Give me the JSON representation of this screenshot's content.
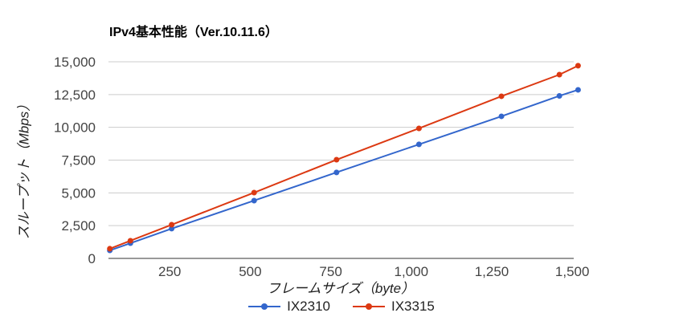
{
  "chart_data": {
    "type": "line",
    "title": "IPv4基本性能（Ver.10.11.6）",
    "xlabel": "フレームサイズ（byte）",
    "ylabel": "スループット（Mbps）",
    "x": [
      64,
      128,
      256,
      512,
      768,
      1024,
      1280,
      1460,
      1518
    ],
    "series": [
      {
        "name": "IX2310",
        "color": "#3366cc",
        "values": [
          610,
          1160,
          2270,
          4410,
          6560,
          8700,
          10840,
          12400,
          12860
        ]
      },
      {
        "name": "IX3315",
        "color": "#dc3912",
        "values": [
          740,
          1350,
          2570,
          5020,
          7530,
          9920,
          12370,
          14020,
          14700
        ]
      }
    ],
    "xlim": [
      60,
      1520
    ],
    "ylim": [
      0,
      15000
    ],
    "xticks": [
      250,
      500,
      750,
      1000,
      1250,
      1500
    ],
    "xtick_labels": [
      "250",
      "500",
      "750",
      "1,000",
      "1,250",
      "1,500"
    ],
    "yticks": [
      0,
      2500,
      5000,
      7500,
      10000,
      12500,
      15000
    ],
    "ytick_labels": [
      "0",
      "2,500",
      "5,000",
      "7,500",
      "10,000",
      "12,500",
      "15,000"
    ],
    "grid": true,
    "legend_position": "bottom"
  },
  "legend": [
    {
      "label": "IX2310",
      "color": "#3366cc"
    },
    {
      "label": "IX3315",
      "color": "#dc3912"
    }
  ]
}
